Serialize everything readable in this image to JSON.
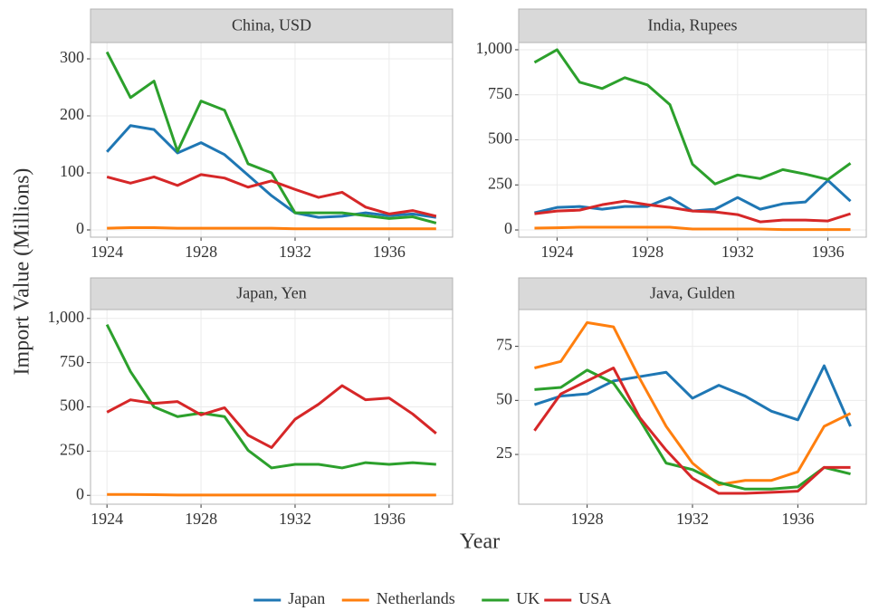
{
  "xlabel": "Year",
  "ylabel": "Import Value (Millions)",
  "chart_data": [
    {
      "type": "line",
      "title": "China, USD",
      "grid": true,
      "x": [
        1924,
        1925,
        1926,
        1927,
        1928,
        1929,
        1930,
        1931,
        1932,
        1933,
        1934,
        1935,
        1936,
        1937,
        1938
      ],
      "xlim": [
        1923.3,
        1938.7
      ],
      "xticks": [
        1924,
        1928,
        1932,
        1936
      ],
      "ylim": [
        -12.7,
        328.6
      ],
      "yticks": [
        0,
        100,
        200,
        300
      ],
      "series": [
        {
          "name": "Japan",
          "color": "#1f77b4",
          "values": [
            137,
            183,
            176,
            135,
            153,
            132,
            96,
            60,
            30,
            22,
            24,
            30,
            25,
            28,
            22
          ]
        },
        {
          "name": "Netherlands",
          "color": "#ff7f0e",
          "values": [
            3,
            4,
            4,
            3,
            3,
            3,
            3,
            3,
            2,
            2,
            2,
            2,
            2,
            2,
            2
          ]
        },
        {
          "name": "UK",
          "color": "#2ca02c",
          "values": [
            312,
            232,
            261,
            138,
            226,
            210,
            116,
            100,
            30,
            30,
            30,
            25,
            20,
            23,
            12
          ]
        },
        {
          "name": "USA",
          "color": "#d62728",
          "values": [
            93,
            82,
            93,
            78,
            97,
            91,
            75,
            86,
            71,
            57,
            66,
            40,
            28,
            34,
            24
          ]
        }
      ]
    },
    {
      "type": "line",
      "title": "India, Rupees",
      "grid": true,
      "x": [
        1923,
        1924,
        1925,
        1926,
        1927,
        1928,
        1929,
        1930,
        1931,
        1932,
        1933,
        1934,
        1935,
        1936,
        1937
      ],
      "xlim": [
        1922.3,
        1937.7
      ],
      "xticks": [
        1924,
        1928,
        1932,
        1936
      ],
      "ylim": [
        -40,
        1040
      ],
      "yticks": [
        0,
        250,
        500,
        750,
        {
          "value": 1000,
          "label": "1,000"
        }
      ],
      "series": [
        {
          "name": "Japan",
          "color": "#1f77b4",
          "values": [
            95,
            125,
            130,
            115,
            130,
            130,
            180,
            105,
            115,
            180,
            115,
            145,
            155,
            275,
            160
          ]
        },
        {
          "name": "Netherlands",
          "color": "#ff7f0e",
          "values": [
            10,
            12,
            15,
            15,
            15,
            15,
            15,
            5,
            5,
            5,
            5,
            2,
            2,
            2,
            2
          ]
        },
        {
          "name": "UK",
          "color": "#2ca02c",
          "values": [
            930,
            1000,
            820,
            785,
            845,
            805,
            695,
            365,
            255,
            305,
            285,
            335,
            310,
            280,
            370
          ]
        },
        {
          "name": "USA",
          "color": "#d62728",
          "values": [
            90,
            105,
            110,
            140,
            160,
            140,
            125,
            105,
            100,
            85,
            45,
            55,
            55,
            50,
            90
          ]
        }
      ]
    },
    {
      "type": "line",
      "title": "Japan, Yen",
      "grid": true,
      "x": [
        1924,
        1925,
        1926,
        1927,
        1928,
        1929,
        1930,
        1931,
        1932,
        1933,
        1934,
        1935,
        1936,
        1937,
        1938
      ],
      "xlim": [
        1923.3,
        1938.7
      ],
      "xticks": [
        1924,
        1928,
        1932,
        1936
      ],
      "ylim": [
        -50,
        1050
      ],
      "yticks": [
        0,
        250,
        500,
        750,
        {
          "value": 1000,
          "label": "1,000"
        }
      ],
      "series": [
        {
          "name": "Netherlands",
          "color": "#ff7f0e",
          "values": [
            5,
            5,
            4,
            2,
            2,
            2,
            2,
            2,
            2,
            2,
            2,
            2,
            2,
            2,
            2
          ]
        },
        {
          "name": "UK",
          "color": "#2ca02c",
          "values": [
            965,
            700,
            500,
            445,
            465,
            445,
            255,
            155,
            175,
            175,
            155,
            185,
            175,
            185,
            175
          ]
        },
        {
          "name": "USA",
          "color": "#d62728",
          "values": [
            470,
            540,
            520,
            530,
            455,
            495,
            340,
            270,
            430,
            515,
            620,
            540,
            550,
            460,
            350
          ]
        }
      ]
    },
    {
      "type": "line",
      "title": "Java, Gulden",
      "grid": true,
      "x": [
        1926,
        1927,
        1928,
        1929,
        1930,
        1931,
        1932,
        1933,
        1934,
        1935,
        1936,
        1937,
        1938
      ],
      "xlim": [
        1925.4,
        1938.6
      ],
      "xticks": [
        1928,
        1932,
        1936
      ],
      "ylim": [
        2,
        92
      ],
      "yticks": [
        25,
        50,
        75
      ],
      "series": [
        {
          "name": "Japan",
          "color": "#1f77b4",
          "values": [
            48,
            52,
            53,
            59,
            61,
            63,
            51,
            57,
            52,
            45,
            41,
            66,
            38
          ]
        },
        {
          "name": "Netherlands",
          "color": "#ff7f0e",
          "values": [
            65,
            68,
            86,
            84,
            60,
            38,
            21,
            11,
            13,
            13,
            17,
            38,
            44
          ]
        },
        {
          "name": "UK",
          "color": "#2ca02c",
          "values": [
            55,
            56,
            64,
            58,
            41,
            21,
            18,
            12,
            9,
            9,
            10,
            19,
            16
          ]
        },
        {
          "name": "USA",
          "color": "#d62728",
          "values": [
            36,
            53,
            59,
            65,
            42,
            27,
            14,
            7,
            7,
            7.5,
            8,
            19,
            19
          ]
        }
      ]
    }
  ]
}
